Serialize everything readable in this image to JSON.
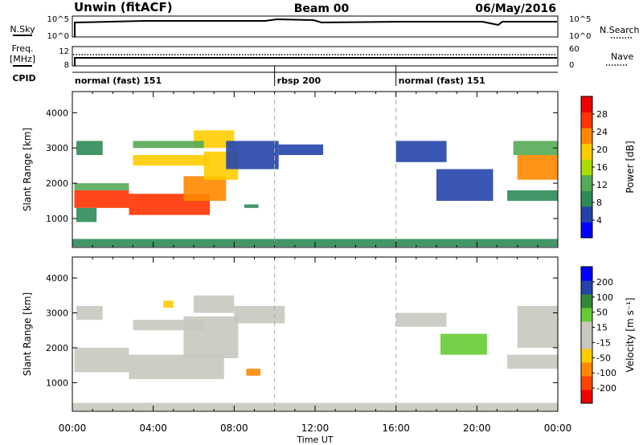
{
  "header": {
    "title": "Unwin (fitACF)",
    "beam": "Beam 00",
    "date": "06/May/2016"
  },
  "top_panels": {
    "nsky": {
      "label": "N.Sky",
      "left_ticks": [
        "10^5",
        "10^0"
      ],
      "right_ticks": [
        "10^5",
        "10^0"
      ],
      "right_label": "N.Search"
    },
    "freq": {
      "label_line1": "Freq.",
      "label_line2": "[MHz]",
      "left_ticks": [
        "12",
        "8"
      ],
      "right_ticks": [
        "60",
        "0"
      ],
      "right_label": "Nave"
    },
    "cpid": {
      "label": "CPID",
      "segments": [
        {
          "name": "normal (fast) 151",
          "start_hour": 0,
          "end_hour": 10.0
        },
        {
          "name": "rbsp 200",
          "start_hour": 10.0,
          "end_hour": 16.0
        },
        {
          "name": "normal (fast) 151",
          "start_hour": 16.0,
          "end_hour": 24.0
        }
      ]
    }
  },
  "x_axis": {
    "label": "Time UT",
    "ticks": [
      "00:00",
      "04:00",
      "08:00",
      "12:00",
      "16:00",
      "20:00",
      "00:00"
    ],
    "range_hours": [
      0,
      24
    ]
  },
  "chart_data": [
    {
      "type": "heatmap",
      "title": "",
      "ylabel": "Slant Range [km]",
      "ylim": [
        180,
        4600
      ],
      "yticks": [
        "4000",
        "3000",
        "2000",
        "1000"
      ],
      "colorbar_label": "Power [dB]",
      "colorbar_ticks": [
        "28",
        "24",
        "20",
        "16",
        "12",
        "8",
        "4"
      ],
      "colorbar_range": [
        0,
        32
      ],
      "colorscale": [
        "#0000ff",
        "#2244aa",
        "#2e8b57",
        "#55aa55",
        "#aadd00",
        "#ffcc00",
        "#ff8800",
        "#ff3300",
        "#ee0000"
      ],
      "regions": [
        {
          "t0": 0.1,
          "t1": 2.8,
          "r0": 1300,
          "r1": 1800,
          "value": 26
        },
        {
          "t0": 0.1,
          "t1": 2.8,
          "r0": 1800,
          "r1": 2000,
          "value": 12
        },
        {
          "t0": 0.2,
          "t1": 1.2,
          "r0": 900,
          "r1": 1300,
          "value": 10
        },
        {
          "t0": 0.2,
          "t1": 1.5,
          "r0": 2800,
          "r1": 3200,
          "value": 8
        },
        {
          "t0": 2.8,
          "t1": 6.8,
          "r0": 1100,
          "r1": 1700,
          "value": 28
        },
        {
          "t0": 5.5,
          "t1": 7.6,
          "r0": 1500,
          "r1": 2200,
          "value": 24
        },
        {
          "t0": 6.5,
          "t1": 8.2,
          "r0": 2100,
          "r1": 2900,
          "value": 18
        },
        {
          "t0": 6.0,
          "t1": 8.0,
          "r0": 3000,
          "r1": 3500,
          "value": 18
        },
        {
          "t0": 3.0,
          "t1": 6.8,
          "r0": 2500,
          "r1": 2800,
          "value": 18
        },
        {
          "t0": 3.0,
          "t1": 6.5,
          "r0": 3000,
          "r1": 3200,
          "value": 12
        },
        {
          "t0": 7.6,
          "t1": 10.2,
          "r0": 2400,
          "r1": 3200,
          "value": 6
        },
        {
          "t0": 8.5,
          "t1": 9.2,
          "r0": 1300,
          "r1": 1400,
          "value": 10
        },
        {
          "t0": 10.2,
          "t1": 12.4,
          "r0": 2800,
          "r1": 3100,
          "value": 6
        },
        {
          "t0": 16.0,
          "t1": 18.5,
          "r0": 2600,
          "r1": 3200,
          "value": 6
        },
        {
          "t0": 18.0,
          "t1": 20.8,
          "r0": 1500,
          "r1": 2400,
          "value": 6
        },
        {
          "t0": 21.5,
          "t1": 24.0,
          "r0": 1500,
          "r1": 1800,
          "value": 10
        },
        {
          "t0": 22.0,
          "t1": 24.0,
          "r0": 2100,
          "r1": 2800,
          "value": 24
        },
        {
          "t0": 21.8,
          "t1": 24.0,
          "r0": 2800,
          "r1": 3200,
          "value": 14
        },
        {
          "t0": 0.0,
          "t1": 24.0,
          "r0": 200,
          "r1": 420,
          "value": 10
        }
      ]
    },
    {
      "type": "heatmap",
      "title": "",
      "ylabel": "Slant Range [km]",
      "ylim": [
        180,
        4600
      ],
      "yticks": [
        "4000",
        "3000",
        "2000",
        "1000"
      ],
      "colorbar_label": "Velocity [m s⁻¹]",
      "colorbar_ticks": [
        "200",
        "100",
        "50",
        "15",
        "-15",
        "-50",
        "-100",
        "-200"
      ],
      "colorbar_range": [
        -250,
        250
      ],
      "colorscale": [
        "#ee0000",
        "#ff4400",
        "#ff8800",
        "#ffcc00",
        "#c8c8c0",
        "#c8c8c0",
        "#66cc33",
        "#338833",
        "#2244aa",
        "#0000ff"
      ],
      "regions": [
        {
          "t0": 0.1,
          "t1": 2.8,
          "r0": 1300,
          "r1": 2000,
          "value": 0
        },
        {
          "t0": 2.8,
          "t1": 7.5,
          "r0": 1100,
          "r1": 1800,
          "value": 0
        },
        {
          "t0": 5.5,
          "t1": 8.2,
          "r0": 1700,
          "r1": 2900,
          "value": 0
        },
        {
          "t0": 3.0,
          "t1": 6.5,
          "r0": 2500,
          "r1": 2800,
          "value": 0
        },
        {
          "t0": 0.2,
          "t1": 1.5,
          "r0": 2800,
          "r1": 3200,
          "value": 40
        },
        {
          "t0": 6.0,
          "t1": 8.0,
          "r0": 3000,
          "r1": 3500,
          "value": 0
        },
        {
          "t0": 8.0,
          "t1": 10.5,
          "r0": 2700,
          "r1": 3200,
          "value": 0
        },
        {
          "t0": 4.5,
          "t1": 5.0,
          "r0": 3150,
          "r1": 3350,
          "value": -70
        },
        {
          "t0": 8.6,
          "t1": 9.3,
          "r0": 1200,
          "r1": 1400,
          "value": -120
        },
        {
          "t0": 16.0,
          "t1": 18.5,
          "r0": 2600,
          "r1": 3000,
          "value": 0
        },
        {
          "t0": 18.2,
          "t1": 20.5,
          "r0": 1800,
          "r1": 2400,
          "value": 60
        },
        {
          "t0": 21.5,
          "t1": 24.0,
          "r0": 1400,
          "r1": 1800,
          "value": 0
        },
        {
          "t0": 22.0,
          "t1": 24.0,
          "r0": 2000,
          "r1": 3200,
          "value": 0
        },
        {
          "t0": 0.0,
          "t1": 24.0,
          "r0": 200,
          "r1": 420,
          "value": -30
        }
      ]
    }
  ],
  "colors": {
    "dashed_marker": "#aaaaaa",
    "axis": "#000000"
  }
}
